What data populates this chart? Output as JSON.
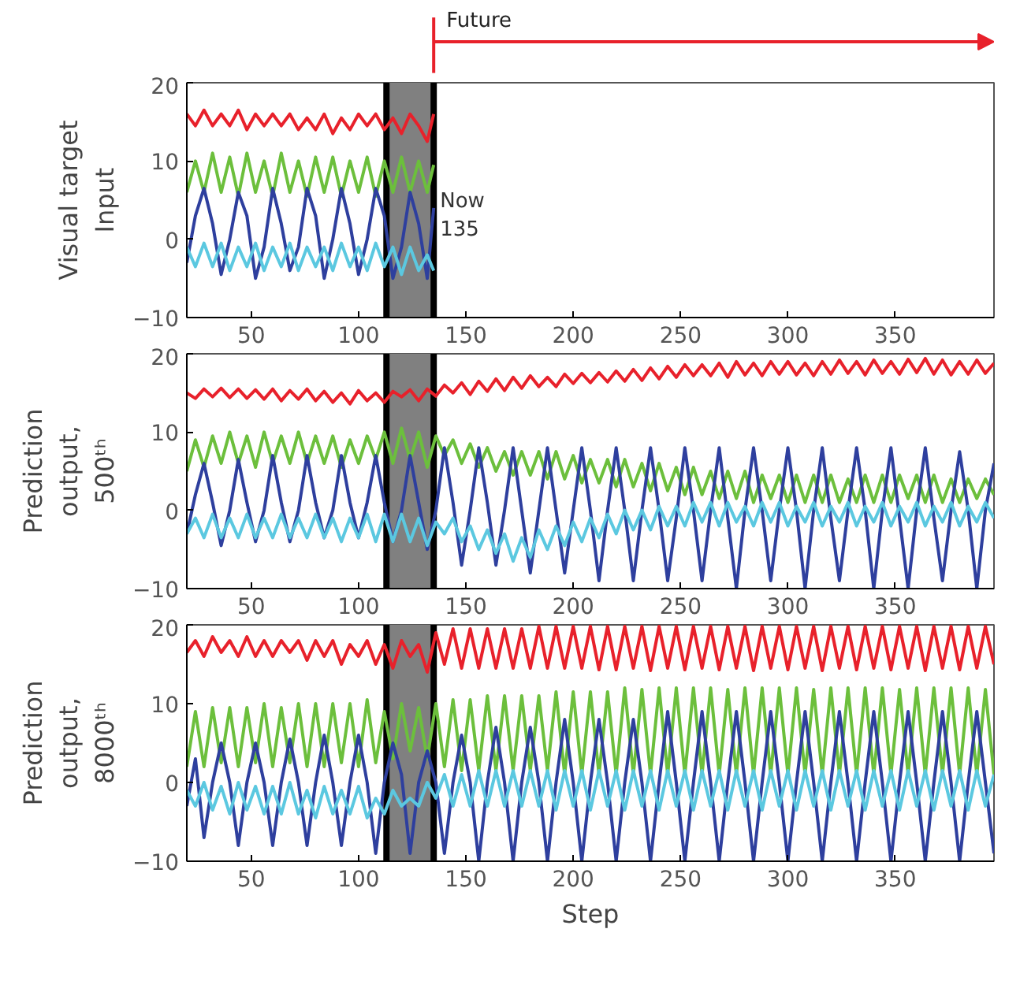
{
  "chart_data": [
    {
      "type": "line",
      "ylabel": "Visual target\nInput",
      "xlim": [
        20,
        396
      ],
      "xticks": [
        50,
        100,
        150,
        200,
        250,
        300,
        350
      ],
      "ylim": [
        -10,
        20
      ],
      "yticks": [
        -10,
        0,
        10,
        20
      ],
      "grid": false,
      "bands": [
        {
          "axis": "x",
          "from": 113,
          "to": 135,
          "color": "#808080"
        }
      ],
      "ref_lines": [
        {
          "axis": "x",
          "value": 113,
          "color": "#000000"
        },
        {
          "axis": "x",
          "value": 135,
          "color": "#000000"
        }
      ],
      "annotations": [
        "Future",
        {
          "text": "Now\n135",
          "x": 135,
          "y": 3
        }
      ],
      "x": [
        20,
        24,
        28,
        32,
        36,
        40,
        44,
        48,
        52,
        56,
        60,
        64,
        68,
        72,
        76,
        80,
        84,
        88,
        92,
        96,
        100,
        104,
        108,
        112,
        116,
        120,
        124,
        128,
        132,
        135
      ],
      "series": [
        {
          "color": "#e8212b",
          "values": [
            16,
            14.5,
            16.5,
            14.5,
            16,
            14.5,
            16.5,
            14,
            16,
            14.5,
            16,
            14.5,
            16,
            14,
            15.5,
            14,
            16,
            13.5,
            15.5,
            14,
            16,
            14.5,
            16,
            14,
            15.5,
            13.5,
            16,
            14.5,
            12.5,
            16
          ]
        },
        {
          "color": "#6cbf3c",
          "values": [
            6,
            10,
            6,
            11,
            6,
            10.5,
            5.5,
            11,
            6,
            10,
            5.5,
            11,
            6,
            10,
            5.5,
            10.5,
            6,
            10.5,
            5.5,
            10,
            6,
            10.5,
            5.5,
            10,
            6,
            10.5,
            6,
            10,
            6,
            9.5
          ]
        },
        {
          "color": "#2e3f9e",
          "values": [
            -3,
            3,
            6.5,
            2,
            -4.5,
            0,
            6,
            3,
            -5,
            -1,
            6.5,
            2,
            -4,
            -1,
            6.5,
            3,
            -5,
            0,
            6.5,
            2,
            -4.5,
            0,
            6.5,
            3,
            -5,
            -1,
            6,
            2,
            -5,
            4
          ]
        },
        {
          "color": "#5bc8e0",
          "values": [
            -1,
            -3.5,
            -0.5,
            -3.5,
            -0.5,
            -4,
            -1,
            -3.5,
            -0.5,
            -4,
            -1,
            -3.5,
            -0.5,
            -4,
            -1,
            -3.5,
            -1,
            -4,
            -0.5,
            -3.5,
            -1,
            -4,
            -0.5,
            -3.5,
            -1,
            -4.5,
            -1,
            -4,
            -2,
            -4
          ]
        }
      ]
    },
    {
      "type": "line",
      "ylabel": "Prediction\noutput,\n500ᵗʰ",
      "xlim": [
        20,
        396
      ],
      "xticks": [
        50,
        100,
        150,
        200,
        250,
        300,
        350
      ],
      "ylim": [
        -10,
        20
      ],
      "yticks": [
        -10,
        0,
        10,
        20
      ],
      "grid": false,
      "bands": [
        {
          "axis": "x",
          "from": 113,
          "to": 135,
          "color": "#808080"
        }
      ],
      "ref_lines": [
        {
          "axis": "x",
          "value": 113,
          "color": "#000000"
        },
        {
          "axis": "x",
          "value": 135,
          "color": "#000000"
        }
      ],
      "x": [
        20,
        24,
        28,
        32,
        36,
        40,
        44,
        48,
        52,
        56,
        60,
        64,
        68,
        72,
        76,
        80,
        84,
        88,
        92,
        96,
        100,
        104,
        108,
        112,
        116,
        120,
        124,
        128,
        132,
        136,
        140,
        144,
        148,
        152,
        156,
        160,
        164,
        168,
        172,
        176,
        180,
        184,
        188,
        192,
        196,
        200,
        204,
        208,
        212,
        216,
        220,
        224,
        228,
        232,
        236,
        240,
        244,
        248,
        252,
        256,
        260,
        264,
        268,
        272,
        276,
        280,
        284,
        288,
        292,
        296,
        300,
        304,
        308,
        312,
        316,
        320,
        324,
        328,
        332,
        336,
        340,
        344,
        348,
        352,
        356,
        360,
        364,
        368,
        372,
        376,
        380,
        384,
        388,
        392,
        396
      ],
      "series": [
        {
          "color": "#e8212b",
          "values": [
            15,
            14.3,
            15.5,
            14.5,
            15.6,
            14.4,
            15.5,
            14.3,
            15.4,
            14.2,
            15.5,
            14,
            15.3,
            14.2,
            15.5,
            14,
            15.2,
            13.8,
            15,
            13.6,
            15.3,
            14,
            15,
            13.8,
            15.2,
            14.5,
            15.4,
            14,
            15.5,
            14.6,
            16,
            15,
            16.3,
            14.8,
            16.5,
            15.2,
            16.8,
            15.3,
            17,
            15.6,
            17.2,
            15.8,
            17,
            15.8,
            17.4,
            16.2,
            17.5,
            16.3,
            17.6,
            16.4,
            17.8,
            16.5,
            18,
            16.6,
            18.2,
            16.8,
            18.4,
            17,
            18.6,
            17.2,
            18.6,
            17.2,
            18.8,
            17,
            19,
            17.3,
            18.8,
            17.2,
            19,
            17.4,
            19,
            17.3,
            18.8,
            17.2,
            19,
            17.4,
            19.2,
            17.5,
            19,
            17.3,
            19.2,
            17.5,
            19,
            17.4,
            19.3,
            17.6,
            19.4,
            17.4,
            19.2,
            17.3,
            19,
            17.4,
            19.2,
            17.5,
            18.8
          ]
        },
        {
          "color": "#6cbf3c",
          "values": [
            5,
            9,
            5.5,
            9.5,
            6,
            10,
            6,
            9.5,
            5.5,
            10,
            6,
            9.5,
            6,
            10,
            6,
            9.5,
            6,
            9.5,
            5.5,
            9,
            6,
            9.5,
            6.5,
            10,
            6,
            10.5,
            6.5,
            10,
            5.5,
            9.5,
            7,
            9,
            6,
            8.5,
            5.5,
            8,
            5,
            7.5,
            4.5,
            7.5,
            4.5,
            7.5,
            4,
            7.5,
            4,
            7,
            3.5,
            6.5,
            3.5,
            6.5,
            3,
            6.5,
            3,
            6,
            2.5,
            6,
            2.5,
            5.5,
            2,
            5.5,
            2,
            5,
            1.5,
            5,
            1.5,
            5,
            1,
            4.5,
            1.5,
            4.5,
            1,
            4.5,
            1,
            4.5,
            1,
            4.5,
            1,
            4,
            1,
            4.5,
            1,
            4.5,
            1,
            4.5,
            1.5,
            4.5,
            1,
            4.5,
            1,
            4,
            1,
            4,
            1.5,
            4,
            2
          ]
        },
        {
          "color": "#2e3f9e",
          "values": [
            -3,
            2,
            6,
            1,
            -4.5,
            0,
            6.5,
            1,
            -4,
            0,
            7,
            1,
            -4,
            0,
            7,
            1,
            -3.5,
            0,
            7,
            1,
            -3.5,
            1,
            7,
            1,
            -4,
            0,
            7,
            1,
            -5,
            0,
            8,
            1,
            -7,
            0,
            8,
            1,
            -7,
            0,
            8,
            0,
            -8,
            0,
            8,
            0,
            -8,
            0,
            8,
            0,
            -9,
            0,
            8,
            0,
            -9,
            0,
            8,
            0,
            -9,
            -1,
            8,
            0,
            -9,
            0,
            8,
            -1,
            -10,
            0,
            8,
            0,
            -9,
            0,
            8,
            0,
            -10,
            0,
            8,
            -1,
            -9,
            0,
            8,
            0,
            -10,
            0,
            8,
            -1,
            -10,
            0,
            8,
            -1,
            -9,
            0,
            7.5,
            0,
            -10,
            0,
            6
          ]
        },
        {
          "color": "#5bc8e0",
          "values": [
            -3,
            -1,
            -3.5,
            -0.5,
            -3.5,
            -1,
            -3.5,
            -0.5,
            -3.5,
            -1,
            -3.5,
            -0.5,
            -3.5,
            -1,
            -3.5,
            -0.5,
            -3.5,
            -1,
            -4,
            -1,
            -3.5,
            -0.5,
            -4,
            -0.5,
            -4,
            -0.5,
            -4,
            -1,
            -4.5,
            -1.5,
            -3,
            -1,
            -4,
            -2,
            -5,
            -2.5,
            -5.5,
            -3,
            -6.5,
            -3.5,
            -6,
            -2.5,
            -5,
            -2,
            -4.5,
            -1.5,
            -4,
            -1,
            -3.5,
            -0.5,
            -3,
            0,
            -2.5,
            0,
            -2.5,
            0.5,
            -2,
            0.5,
            -2,
            1,
            -1.5,
            1,
            -2,
            1,
            -1.5,
            0.5,
            -2,
            1,
            -1.5,
            1,
            -2,
            0.5,
            -1.5,
            1,
            -2,
            0.5,
            -1.5,
            1,
            -2,
            0.5,
            -1.5,
            1,
            -2,
            0.5,
            -1.5,
            1,
            -2,
            0.5,
            -1.5,
            1,
            -2,
            0.5,
            -1.5,
            1,
            -1
          ]
        }
      ]
    },
    {
      "type": "line",
      "ylabel": "Prediction\noutput,\n8000ᵗʰ",
      "xlabel": "Step",
      "xlim": [
        20,
        396
      ],
      "xticks": [
        50,
        100,
        150,
        200,
        250,
        300,
        350
      ],
      "ylim": [
        -10,
        20
      ],
      "yticks": [
        -10,
        0,
        10,
        20
      ],
      "grid": false,
      "bands": [
        {
          "axis": "x",
          "from": 113,
          "to": 135,
          "color": "#808080"
        }
      ],
      "ref_lines": [
        {
          "axis": "x",
          "value": 113,
          "color": "#000000"
        },
        {
          "axis": "x",
          "value": 135,
          "color": "#000000"
        }
      ],
      "x": [
        20,
        24,
        28,
        32,
        36,
        40,
        44,
        48,
        52,
        56,
        60,
        64,
        68,
        72,
        76,
        80,
        84,
        88,
        92,
        96,
        100,
        104,
        108,
        112,
        116,
        120,
        124,
        128,
        132,
        136,
        140,
        144,
        148,
        152,
        156,
        160,
        164,
        168,
        172,
        176,
        180,
        184,
        188,
        192,
        196,
        200,
        204,
        208,
        212,
        216,
        220,
        224,
        228,
        232,
        236,
        240,
        244,
        248,
        252,
        256,
        260,
        264,
        268,
        272,
        276,
        280,
        284,
        288,
        292,
        296,
        300,
        304,
        308,
        312,
        316,
        320,
        324,
        328,
        332,
        336,
        340,
        344,
        348,
        352,
        356,
        360,
        364,
        368,
        372,
        376,
        380,
        384,
        388,
        392,
        396
      ],
      "series": [
        {
          "color": "#e8212b",
          "values": [
            16.5,
            18,
            16,
            18.5,
            16.5,
            18,
            16,
            18.5,
            16,
            18,
            16,
            18,
            16.5,
            18,
            15.5,
            18,
            16,
            18,
            15,
            17.5,
            16,
            18,
            15,
            17.5,
            14.5,
            18,
            16,
            17.5,
            14,
            19,
            15,
            19.5,
            14.5,
            19.5,
            14.5,
            19.5,
            14.5,
            19.5,
            14.5,
            19.5,
            14.5,
            19.8,
            14.5,
            19.8,
            14.5,
            19.8,
            14.5,
            19.8,
            14.3,
            19.8,
            14.3,
            19.8,
            14.5,
            19.8,
            14.2,
            19.8,
            14.5,
            19.8,
            14.3,
            19.8,
            14.5,
            19.8,
            14.3,
            19.8,
            14.5,
            19.8,
            14.2,
            19.8,
            14.5,
            19.8,
            14.3,
            19.8,
            14.5,
            19.8,
            14.2,
            19.8,
            14.5,
            19.8,
            14.3,
            19.8,
            14.5,
            19.8,
            14.3,
            19.8,
            14.5,
            19.8,
            14.2,
            19.8,
            14.5,
            19.8,
            14.3,
            19.8,
            14.5,
            19.8,
            15
          ]
        },
        {
          "color": "#6cbf3c",
          "values": [
            2,
            9,
            2,
            9.5,
            2.5,
            9.5,
            2,
            9.5,
            2.5,
            10,
            2,
            9.5,
            2.5,
            10,
            2,
            10,
            2,
            10,
            2.5,
            10,
            2,
            10.5,
            2.5,
            9,
            3,
            10,
            4,
            9.5,
            3,
            10,
            2,
            10.5,
            1.5,
            10.5,
            1.5,
            11,
            1.5,
            11,
            1.5,
            11,
            1.5,
            11,
            1.5,
            11.5,
            1,
            11.5,
            1,
            11.5,
            1,
            11.5,
            1,
            12,
            1,
            11.8,
            1,
            12,
            1,
            12,
            1,
            12,
            1,
            12,
            1,
            11.8,
            1,
            12,
            1,
            12,
            1,
            12,
            1,
            12,
            1,
            11.8,
            1,
            12,
            1,
            12,
            1,
            12,
            1,
            12,
            1,
            11.8,
            1,
            12,
            1,
            12,
            1,
            12,
            1,
            12,
            1,
            11.8,
            1
          ]
        },
        {
          "color": "#2e3f9e",
          "values": [
            -3,
            3,
            -7,
            0,
            5,
            0,
            -8,
            0,
            5,
            0,
            -8,
            0,
            5.5,
            0,
            -8,
            0,
            6,
            0,
            -8,
            0,
            6,
            0,
            -9,
            0,
            5,
            1,
            -9,
            0,
            4,
            0,
            -9,
            0,
            6,
            0,
            -10,
            0,
            7,
            0,
            -10,
            0,
            7,
            0,
            -10,
            0,
            8,
            0,
            -10,
            0,
            8,
            0,
            -10,
            0,
            8,
            0,
            -10,
            0,
            9,
            0,
            -10,
            0,
            9,
            0,
            -10,
            0,
            9,
            0,
            -10,
            0,
            9,
            0,
            -10,
            0,
            9,
            0,
            -10,
            0,
            9,
            0,
            -10,
            0,
            9,
            0,
            -10,
            0,
            9,
            0,
            -10,
            0,
            9,
            0,
            -10,
            0,
            9,
            0,
            -9
          ]
        },
        {
          "color": "#5bc8e0",
          "values": [
            -1,
            -3,
            0,
            -3.5,
            -0.5,
            -4,
            0,
            -3.5,
            -0.5,
            -4,
            -0.5,
            -4,
            0,
            -4,
            -1,
            -4.5,
            -0.5,
            -4,
            -1,
            -4,
            -0.5,
            -4.5,
            -2,
            -4,
            -1,
            -3,
            -2,
            -3,
            0,
            -2,
            1,
            -3,
            1,
            -3,
            1.5,
            -3,
            1.5,
            -3,
            1.5,
            -3,
            1.5,
            -3,
            1.5,
            -3.5,
            1.5,
            -3,
            1.5,
            -3.5,
            1.5,
            -3,
            1.5,
            -3.5,
            1.5,
            -3,
            1.5,
            -3.5,
            1.5,
            -3,
            1.5,
            -3.5,
            1.5,
            -3,
            1.5,
            -3.5,
            1.5,
            -3,
            1.5,
            -3.5,
            1.5,
            -3,
            1.5,
            -3.5,
            1.5,
            -3,
            1.5,
            -3.5,
            1.5,
            -3,
            1.5,
            -3.5,
            1.5,
            -3,
            1.5,
            -3.5,
            1.5,
            -3,
            1.5,
            -3.5,
            1.5,
            -3,
            1.5,
            -3.5,
            1.5,
            -3,
            1
          ]
        }
      ]
    }
  ]
}
